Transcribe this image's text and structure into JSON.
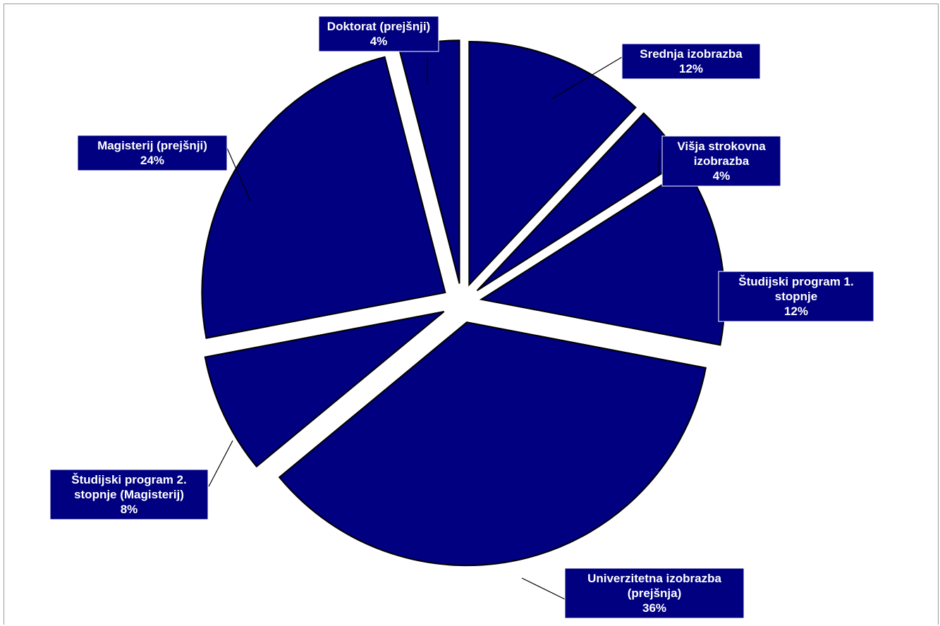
{
  "chart_data": {
    "type": "pie",
    "exploded": true,
    "colors": {
      "slice": "#000080",
      "label_background": "#000080",
      "label_text": "#ffffff"
    },
    "slices": [
      {
        "label_lines": [
          "Srednja izobrazba"
        ],
        "percent_label": "12%",
        "value": 12
      },
      {
        "label_lines": [
          "Višja strokovna",
          "izobrazba"
        ],
        "percent_label": "4%",
        "value": 4
      },
      {
        "label_lines": [
          "Študijski program 1.",
          "stopnje"
        ],
        "percent_label": "12%",
        "value": 12
      },
      {
        "label_lines": [
          "Univerzitetna izobrazba",
          "(prejšnja)"
        ],
        "percent_label": "36%",
        "value": 36
      },
      {
        "label_lines": [
          "Študijski program 2.",
          "stopnje (Magisterij)"
        ],
        "percent_label": "8%",
        "value": 8
      },
      {
        "label_lines": [
          "Magisterij (prejšnji)"
        ],
        "percent_label": "24%",
        "value": 24
      },
      {
        "label_lines": [
          "Doktorat (prejšnji)"
        ],
        "percent_label": "4%",
        "value": 4
      }
    ]
  }
}
